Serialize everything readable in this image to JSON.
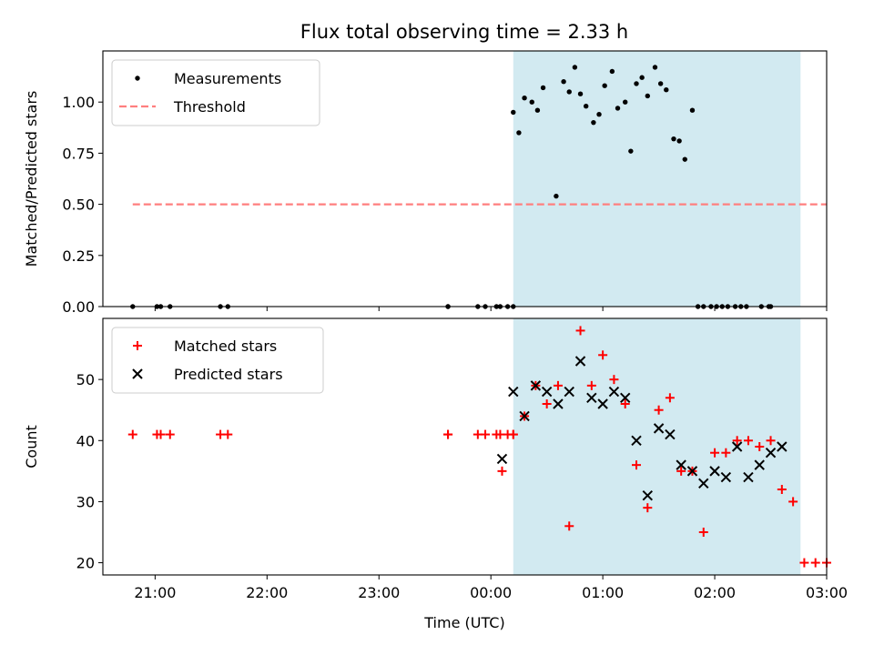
{
  "title": "Flux total observing time = 2.33 h",
  "colors": {
    "measurement": "#000000",
    "threshold": "#ff7f7f",
    "matched": "#ff0000",
    "predicted": "#000000",
    "observing_window": "#add8e6"
  },
  "chart_data": [
    {
      "type": "scatter",
      "panel": "top",
      "ylabel": "Matched/Predicted stars",
      "xlim": [
        "20:32",
        "03:00"
      ],
      "ylim": [
        0,
        1.25
      ],
      "yticks": [
        0.0,
        0.25,
        0.5,
        0.75,
        1.0
      ],
      "ytick_labels": [
        "0.00",
        "0.25",
        "0.50",
        "0.75",
        "1.00"
      ],
      "legend_position": "upper left",
      "observing_window": {
        "start": "00:12",
        "end": "02:46"
      },
      "series": [
        {
          "name": "Measurements",
          "marker": "dot",
          "x": [
            "20:48",
            "21:01",
            "21:03",
            "21:08",
            "21:35",
            "21:39",
            "23:37",
            "23:37",
            "23:53",
            "23:57",
            "00:03",
            "00:05",
            "00:09",
            "00:12",
            "00:12",
            "00:15",
            "00:18",
            "00:22",
            "00:25",
            "00:28",
            "00:35",
            "00:39",
            "00:42",
            "00:45",
            "00:48",
            "00:51",
            "00:55",
            "00:58",
            "01:01",
            "01:05",
            "01:08",
            "01:12",
            "01:15",
            "01:18",
            "01:21",
            "01:24",
            "01:28",
            "01:31",
            "01:34",
            "01:38",
            "01:41",
            "01:44",
            "01:48",
            "01:51",
            "01:54",
            "01:58",
            "02:01",
            "02:04",
            "02:07",
            "02:11",
            "02:14",
            "02:17",
            "02:25",
            "02:29",
            "02:30"
          ],
          "y": [
            0,
            0,
            0,
            0,
            0,
            0,
            0,
            0,
            0,
            0,
            0,
            0,
            0,
            0,
            0.95,
            0.85,
            1.02,
            1.0,
            0.96,
            1.07,
            0.54,
            1.1,
            1.05,
            1.17,
            1.04,
            0.98,
            0.9,
            0.94,
            1.08,
            1.15,
            0.97,
            1.0,
            0.76,
            1.09,
            1.12,
            1.03,
            1.17,
            1.09,
            1.06,
            0.82,
            0.81,
            0.72,
            0.96,
            0,
            0,
            0,
            0,
            0,
            0,
            0,
            0,
            0,
            0,
            0,
            0
          ]
        },
        {
          "name": "Threshold",
          "style": "dashed",
          "x": [
            "20:48",
            "03:00"
          ],
          "y": [
            0.5,
            0.5
          ]
        }
      ]
    },
    {
      "type": "scatter",
      "panel": "bottom",
      "xlabel": "Time (UTC)",
      "ylabel": "Count",
      "xlim": [
        "20:32",
        "03:00"
      ],
      "ylim": [
        18,
        60
      ],
      "yticks": [
        20,
        30,
        40,
        50
      ],
      "ytick_labels": [
        "20",
        "30",
        "40",
        "50"
      ],
      "xticks": [
        "21:00",
        "22:00",
        "23:00",
        "00:00",
        "01:00",
        "02:00",
        "03:00"
      ],
      "xtick_labels": [
        "21:00",
        "22:00",
        "23:00",
        "00:00",
        "01:00",
        "02:00",
        "03:00"
      ],
      "legend_position": "upper left",
      "observing_window": {
        "start": "00:12",
        "end": "02:46"
      },
      "series": [
        {
          "name": "Matched stars",
          "marker": "plus",
          "x": [
            "20:48",
            "21:01",
            "21:03",
            "21:08",
            "21:35",
            "21:39",
            "23:37",
            "23:37",
            "23:53",
            "23:57",
            "00:03",
            "00:05",
            "00:09",
            "00:12",
            "00:06",
            "00:12",
            "00:18",
            "00:24",
            "00:30",
            "00:36",
            "00:42",
            "00:48",
            "00:54",
            "01:00",
            "01:06",
            "01:12",
            "01:18",
            "01:24",
            "01:30",
            "01:36",
            "01:42",
            "01:48",
            "01:54",
            "02:00",
            "02:06",
            "02:12",
            "02:18",
            "02:24",
            "02:30",
            "02:36",
            "02:42",
            "02:48",
            "02:54",
            "03:00"
          ],
          "y": [
            41,
            41,
            41,
            41,
            41,
            41,
            41,
            41,
            41,
            41,
            41,
            41,
            41,
            41,
            35,
            41,
            44,
            49,
            46,
            49,
            26,
            58,
            49,
            54,
            50,
            46,
            36,
            29,
            45,
            47,
            35,
            35,
            25,
            38,
            38,
            40,
            40,
            39,
            40,
            32,
            30,
            20,
            20,
            20
          ]
        },
        {
          "name": "Predicted stars",
          "marker": "x",
          "x": [
            "00:06",
            "00:12",
            "00:18",
            "00:24",
            "00:30",
            "00:36",
            "00:42",
            "00:48",
            "00:54",
            "01:00",
            "01:06",
            "01:12",
            "01:18",
            "01:24",
            "01:30",
            "01:36",
            "01:42",
            "01:48",
            "01:54",
            "02:00",
            "02:06",
            "02:12",
            "02:18",
            "02:24",
            "02:30",
            "02:36"
          ],
          "y": [
            37,
            48,
            44,
            49,
            48,
            46,
            48,
            53,
            47,
            46,
            48,
            47,
            40,
            31,
            42,
            41,
            36,
            35,
            33,
            35,
            34,
            39,
            34,
            36,
            38,
            39
          ]
        }
      ]
    }
  ]
}
